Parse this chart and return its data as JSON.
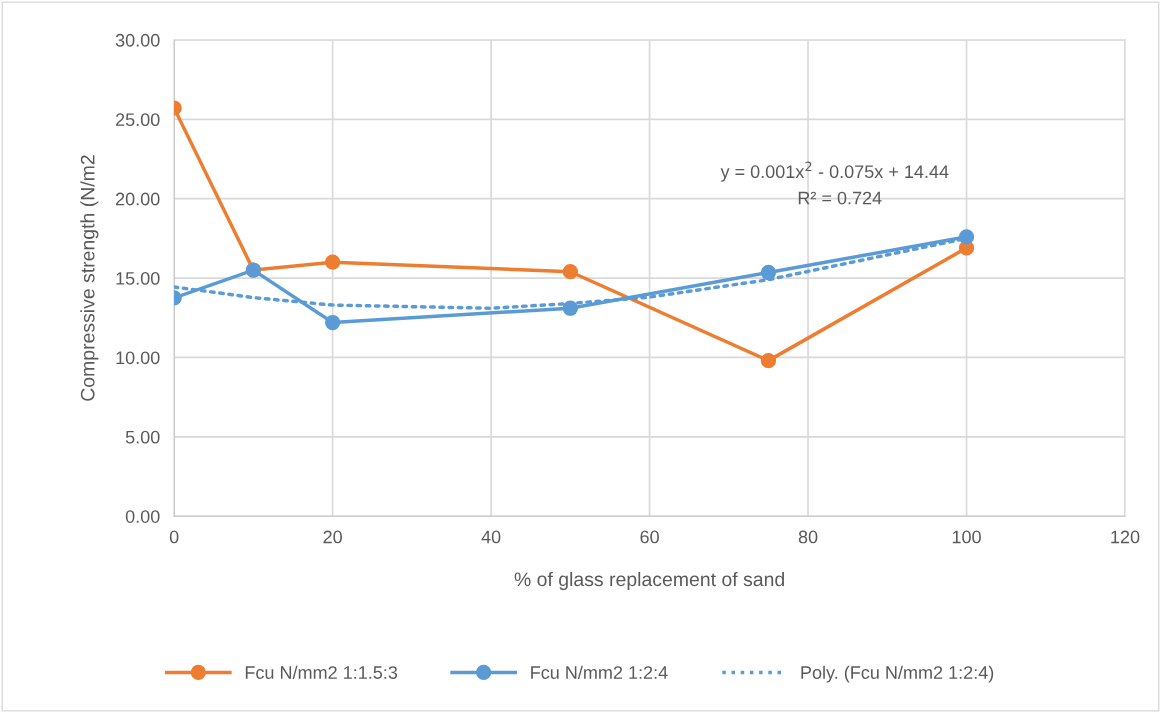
{
  "chart_data": {
    "type": "line",
    "xlabel": "% of glass replacement of sand",
    "ylabel": "Compressive strength (N/m2",
    "x": [
      0,
      10,
      20,
      50,
      75,
      100
    ],
    "series": [
      {
        "name": "Fcu N/mm2 1:1.5:3",
        "color": "#ed7d31",
        "values": [
          25.7,
          15.5,
          16.0,
          15.4,
          9.8,
          16.9
        ]
      },
      {
        "name": "Fcu N/mm2 1:2:4",
        "color": "#5b9bd5",
        "values": [
          13.75,
          15.5,
          12.2,
          13.1,
          15.35,
          17.6
        ]
      },
      {
        "name": "Poly. (Fcu N/mm2 1:2:4)",
        "color": "#5b9bd5",
        "type": "line",
        "marker": "none",
        "line_style": "dotted",
        "x": [
          0,
          10,
          20,
          40,
          50,
          60,
          75,
          100
        ],
        "values": [
          14.44,
          13.77,
          13.3,
          13.1,
          13.4,
          13.8,
          14.9,
          17.5
        ]
      }
    ],
    "annotations": [
      "y = 0.001x$^{2}$ - 0.075x + 14.44",
      "R² = 0.724"
    ],
    "xlim": [
      0,
      120
    ],
    "xticks": [
      0,
      20,
      40,
      60,
      80,
      100,
      120
    ],
    "ylim": [
      0,
      30
    ],
    "yticks": [
      {
        "value": 0,
        "label": "0.00"
      },
      {
        "value": 5,
        "label": "5.00"
      },
      {
        "value": 10,
        "label": "10.00"
      },
      {
        "value": 15,
        "label": "15.00"
      },
      {
        "value": 20,
        "label": "20.00"
      },
      {
        "value": 25,
        "label": "25.00"
      },
      {
        "value": 30,
        "label": "30.00"
      }
    ],
    "grid": true,
    "legend": "bottom",
    "marker": "circle",
    "line_style": "solid"
  }
}
